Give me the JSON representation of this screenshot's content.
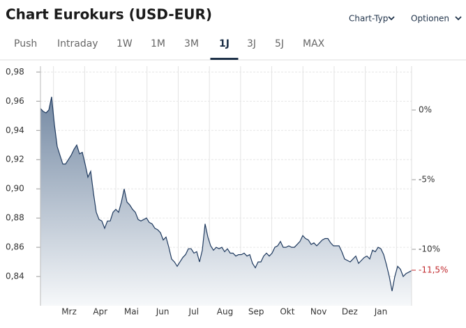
{
  "header": {
    "title": "Chart Eurokurs (USD-EUR)",
    "menus": [
      "Chart-Typ",
      "Optionen"
    ],
    "tabs": [
      "Push",
      "Intraday",
      "1W",
      "1M",
      "3M",
      "1J",
      "3J",
      "5J",
      "MAX"
    ],
    "active_tab": 5
  },
  "chart_data": {
    "type": "area",
    "month_labels": [
      "Mrz",
      "Apr",
      "Mai",
      "Jun",
      "Jul",
      "Aug",
      "Sep",
      "Okt",
      "Nov",
      "Dez",
      "Jan"
    ],
    "series": [
      {
        "color": "#1f3a5f",
        "values": [
          0.955,
          0.953,
          0.952,
          0.954,
          0.963,
          0.944,
          0.929,
          0.923,
          0.917,
          0.917,
          0.92,
          0.923,
          0.927,
          0.93,
          0.924,
          0.925,
          0.917,
          0.908,
          0.912,
          0.897,
          0.884,
          0.879,
          0.878,
          0.873,
          0.878,
          0.878,
          0.884,
          0.886,
          0.884,
          0.891,
          0.9,
          0.891,
          0.889,
          0.886,
          0.884,
          0.879,
          0.878,
          0.879,
          0.88,
          0.877,
          0.876,
          0.873,
          0.872,
          0.87,
          0.865,
          0.867,
          0.86,
          0.852,
          0.85,
          0.847,
          0.85,
          0.853,
          0.855,
          0.859,
          0.859,
          0.856,
          0.857,
          0.85,
          0.858,
          0.876,
          0.867,
          0.861,
          0.858,
          0.86,
          0.859,
          0.86,
          0.857,
          0.859,
          0.856,
          0.856,
          0.854,
          0.855,
          0.855,
          0.856,
          0.854,
          0.855,
          0.849,
          0.846,
          0.85,
          0.85,
          0.854,
          0.856,
          0.854,
          0.856,
          0.86,
          0.861,
          0.864,
          0.86,
          0.86,
          0.861,
          0.86,
          0.86,
          0.862,
          0.864,
          0.868,
          0.866,
          0.865,
          0.862,
          0.863,
          0.861,
          0.863,
          0.865,
          0.866,
          0.866,
          0.863,
          0.861,
          0.861,
          0.861,
          0.857,
          0.852,
          0.851,
          0.85,
          0.852,
          0.854,
          0.849,
          0.851,
          0.853,
          0.854,
          0.852,
          0.858,
          0.857,
          0.86,
          0.859,
          0.855,
          0.848,
          0.84,
          0.83,
          0.84,
          0.847,
          0.845,
          0.84,
          0.842,
          0.843,
          0.844
        ]
      }
    ],
    "ylim": [
      0.82,
      0.984
    ],
    "yticks": [
      {
        "value": 0.84,
        "label": "0,84"
      },
      {
        "value": 0.86,
        "label": "0,86"
      },
      {
        "value": 0.88,
        "label": "0,88"
      },
      {
        "value": 0.9,
        "label": "0,90"
      },
      {
        "value": 0.92,
        "label": "0,92"
      },
      {
        "value": 0.94,
        "label": "0,94"
      },
      {
        "value": 0.96,
        "label": "0,96"
      },
      {
        "value": 0.98,
        "label": "0,98"
      }
    ],
    "y2lim": [
      -14.05,
      3.15
    ],
    "y2ticks": [
      {
        "value": 0,
        "label": "0%"
      },
      {
        "value": -5,
        "label": "-5%"
      },
      {
        "value": -10,
        "label": "-10%"
      }
    ],
    "y2_current": {
      "value": -11.5,
      "label": "-11,5%",
      "color": "#c0282d"
    },
    "grid": true
  }
}
